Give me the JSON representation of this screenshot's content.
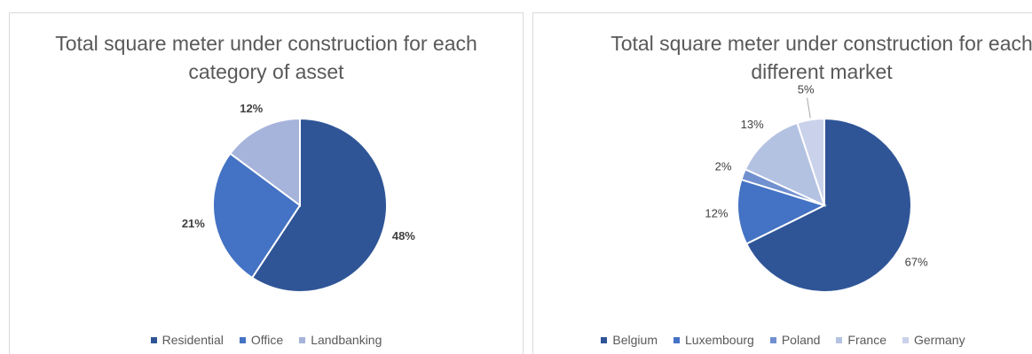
{
  "chart_data": [
    {
      "type": "pie",
      "title": "Total square meter under construction for each category of asset",
      "title_lines": [
        "Total square meter under construction for each",
        "category of asset"
      ],
      "categories": [
        "Residential",
        "Office",
        "Landbanking"
      ],
      "values": [
        48,
        21,
        12
      ],
      "labels": [
        "48%",
        "21%",
        "12%"
      ],
      "colors": [
        "#2f5597",
        "#4472c4",
        "#a6b4dc"
      ],
      "legend_position": "bottom"
    },
    {
      "type": "pie",
      "title": "Total square meter under construction for each different market",
      "title_lines": [
        "Total square meter under construction for each",
        "different market"
      ],
      "categories": [
        "Belgium",
        "Luxembourg",
        "Poland",
        "France",
        "Germany"
      ],
      "values": [
        67,
        12,
        2,
        13,
        5
      ],
      "labels": [
        "67%",
        "12%",
        "2%",
        "13%",
        "5%"
      ],
      "colors": [
        "#2f5597",
        "#4472c4",
        "#7190d0",
        "#b4c2e2",
        "#c9d2ea"
      ],
      "legend_position": "bottom"
    }
  ]
}
